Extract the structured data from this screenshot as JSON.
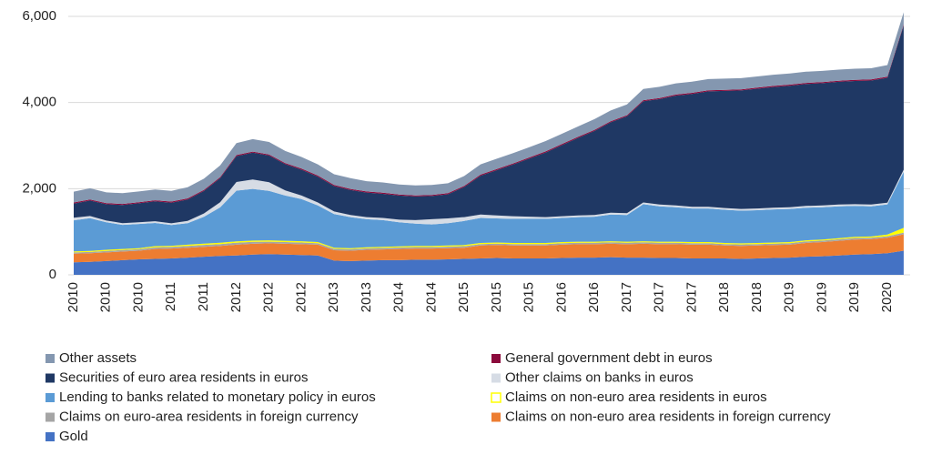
{
  "chart_data": {
    "type": "stacked-area",
    "categories": [
      "2010",
      null,
      "2010",
      null,
      "2010",
      null,
      "2011",
      null,
      "2011",
      null,
      "2012",
      null,
      "2012",
      null,
      "2012",
      null,
      "2013",
      null,
      "2013",
      null,
      "2014",
      null,
      "2014",
      null,
      "2015",
      null,
      "2015",
      null,
      "2015",
      null,
      "2016",
      null,
      "2016",
      null,
      "2017",
      null,
      "2017",
      null,
      "2017",
      null,
      "2018",
      null,
      "2018",
      null,
      "2019",
      null,
      "2019",
      null,
      "2019",
      null,
      "2020",
      null
    ],
    "ylim": [
      0,
      6000
    ],
    "yticks": [
      0,
      {
        "value": 2000,
        "label": "2,000"
      },
      {
        "value": 4000,
        "label": "4,000"
      },
      {
        "value": 6000,
        "label": "6,000"
      }
    ],
    "grid": true,
    "series": [
      {
        "name": "Gold",
        "color": "#4472c4",
        "values": [
          290,
          300,
          320,
          340,
          360,
          370,
          380,
          400,
          420,
          440,
          450,
          470,
          480,
          470,
          460,
          450,
          330,
          320,
          330,
          340,
          340,
          350,
          350,
          360,
          370,
          380,
          390,
          380,
          380,
          380,
          390,
          400,
          400,
          410,
          400,
          400,
          390,
          390,
          380,
          380,
          380,
          370,
          380,
          390,
          400,
          420,
          430,
          450,
          470,
          480,
          500,
          560
        ]
      },
      {
        "name": "Claims on non-euro area residents in foreign currency",
        "color": "#ed7d31",
        "values": [
          200,
          200,
          200,
          200,
          200,
          230,
          230,
          230,
          230,
          230,
          250,
          250,
          250,
          250,
          250,
          250,
          240,
          240,
          250,
          250,
          260,
          260,
          260,
          260,
          260,
          300,
          300,
          300,
          300,
          300,
          310,
          310,
          310,
          310,
          310,
          320,
          320,
          320,
          320,
          320,
          300,
          300,
          300,
          300,
          300,
          320,
          330,
          340,
          350,
          350,
          360,
          380
        ]
      },
      {
        "name": "Claims on euro-area residents in foreign currency",
        "color": "#a5a5a5",
        "values": [
          30,
          30,
          35,
          35,
          35,
          40,
          40,
          40,
          45,
          45,
          45,
          45,
          40,
          40,
          40,
          35,
          35,
          35,
          35,
          35,
          35,
          35,
          35,
          35,
          35,
          35,
          35,
          35,
          35,
          35,
          35,
          35,
          35,
          35,
          35,
          35,
          35,
          35,
          35,
          35,
          35,
          35,
          35,
          35,
          35,
          35,
          35,
          35,
          35,
          35,
          35,
          40
        ]
      },
      {
        "name": "Claims on non-euro area residents in euros",
        "color": "#ffff00",
        "values": [
          25,
          25,
          25,
          25,
          25,
          25,
          25,
          30,
          30,
          30,
          30,
          30,
          30,
          30,
          30,
          25,
          25,
          25,
          25,
          25,
          25,
          25,
          25,
          25,
          25,
          25,
          25,
          25,
          25,
          25,
          25,
          25,
          25,
          25,
          25,
          25,
          25,
          25,
          25,
          25,
          25,
          25,
          25,
          25,
          25,
          25,
          25,
          25,
          25,
          25,
          40,
          110
        ]
      },
      {
        "name": "Lending to banks related to monetary policy in euros",
        "color": "#5b9bd5",
        "values": [
          720,
          760,
          640,
          560,
          560,
          540,
          480,
          500,
          620,
          820,
          1180,
          1200,
          1150,
          1050,
          980,
          850,
          780,
          720,
          650,
          620,
          560,
          520,
          500,
          520,
          560,
          580,
          560,
          560,
          560,
          560,
          560,
          570,
          580,
          620,
          620,
          860,
          820,
          800,
          780,
          780,
          770,
          760,
          760,
          770,
          770,
          760,
          750,
          740,
          720,
          700,
          700,
          1300
        ]
      },
      {
        "name": "Other claims on banks in euros",
        "color": "#d6dce5",
        "values": [
          60,
          50,
          40,
          40,
          40,
          40,
          40,
          50,
          80,
          120,
          200,
          220,
          200,
          120,
          80,
          70,
          60,
          50,
          50,
          50,
          60,
          80,
          120,
          110,
          90,
          80,
          70,
          60,
          50,
          40,
          40,
          40,
          40,
          40,
          40,
          40,
          40,
          40,
          40,
          40,
          40,
          40,
          40,
          40,
          40,
          40,
          40,
          40,
          40,
          40,
          40,
          50
        ]
      },
      {
        "name": "Securities of euro area residents  in euros",
        "color": "#1f3864",
        "values": [
          330,
          360,
          380,
          420,
          440,
          460,
          480,
          500,
          520,
          560,
          600,
          620,
          620,
          610,
          600,
          600,
          590,
          580,
          570,
          560,
          560,
          550,
          540,
          560,
          700,
          900,
          1050,
          1200,
          1350,
          1500,
          1650,
          1800,
          1950,
          2100,
          2250,
          2350,
          2450,
          2550,
          2620,
          2680,
          2720,
          2750,
          2780,
          2800,
          2820,
          2830,
          2840,
          2850,
          2860,
          2880,
          2900,
          3350
        ]
      },
      {
        "name": "General government debt in euros",
        "color": "#8b0a3c",
        "values": [
          25,
          25,
          25,
          25,
          25,
          25,
          25,
          25,
          25,
          25,
          25,
          25,
          25,
          25,
          25,
          25,
          25,
          25,
          25,
          25,
          25,
          25,
          25,
          25,
          25,
          25,
          25,
          25,
          25,
          25,
          25,
          25,
          25,
          25,
          25,
          25,
          25,
          25,
          25,
          25,
          25,
          25,
          25,
          25,
          25,
          25,
          25,
          25,
          25,
          25,
          25,
          25
        ]
      },
      {
        "name": "Other assets",
        "color": "#8497b0",
        "values": [
          250,
          260,
          250,
          250,
          250,
          250,
          250,
          260,
          260,
          270,
          280,
          290,
          290,
          280,
          270,
          260,
          250,
          250,
          240,
          240,
          230,
          230,
          230,
          230,
          230,
          240,
          240,
          240,
          240,
          240,
          240,
          240,
          250,
          250,
          250,
          260,
          260,
          260,
          260,
          260,
          260,
          260,
          260,
          260,
          260,
          260,
          260,
          260,
          260,
          260,
          270,
          280
        ]
      }
    ]
  }
}
